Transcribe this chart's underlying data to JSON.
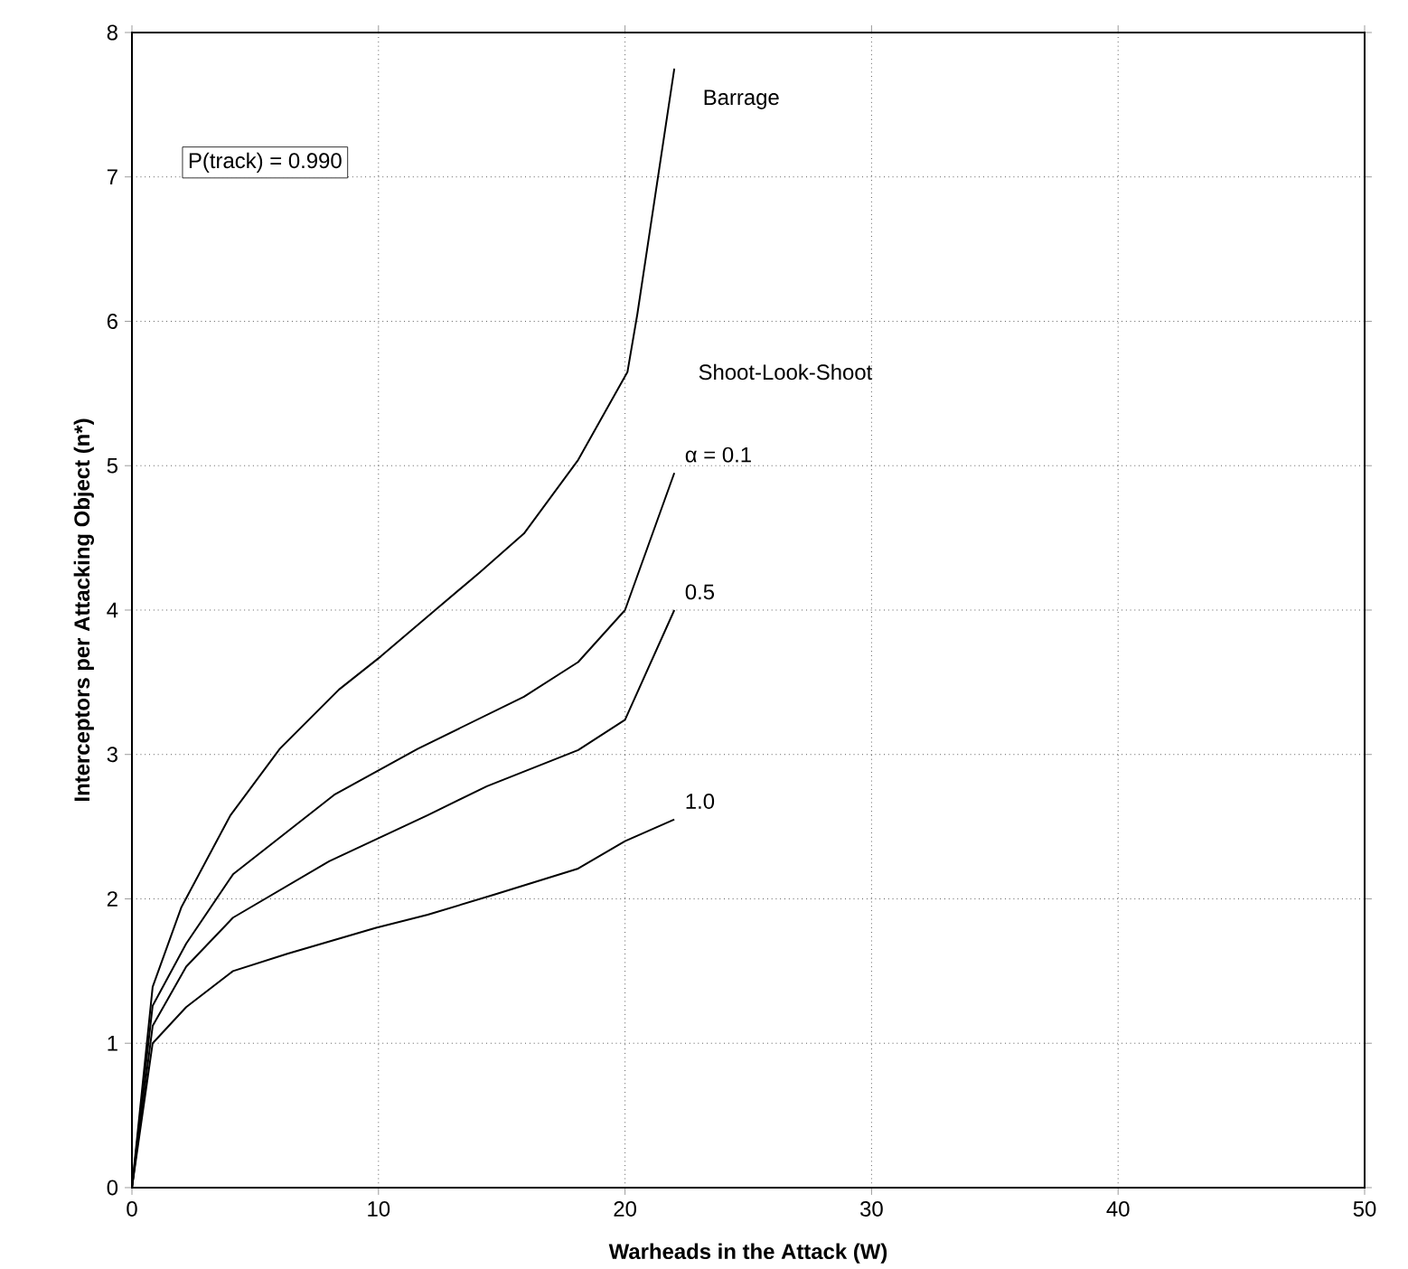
{
  "chart_data": {
    "type": "line",
    "xlabel": "Warheads in the Attack (W)",
    "ylabel": "Interceptors per Attacking Object (n*)",
    "xlim": [
      0,
      50
    ],
    "ylim": [
      0,
      8
    ],
    "xticks": [
      0,
      10,
      20,
      30,
      40,
      50
    ],
    "yticks": [
      0,
      1,
      2,
      3,
      4,
      5,
      6,
      7,
      8
    ],
    "grid": true,
    "legend": false,
    "marker": "none",
    "line_style": "solid",
    "annotations": [
      "P(track) = 0.990",
      "Shoot-Look-Shoot"
    ],
    "series": [
      {
        "name": "Barrage",
        "color": "#000000",
        "x": [
          0,
          0.84,
          2.0,
          4.0,
          6.0,
          8.4,
          10.1,
          12.3,
          14.1,
          15.9,
          18.1,
          20.1,
          20.5,
          22
        ],
        "values": [
          0,
          1.39,
          1.94,
          2.58,
          3.04,
          3.45,
          3.68,
          4.0,
          4.26,
          4.53,
          5.04,
          5.65,
          6.05,
          7.75
        ]
      },
      {
        "name": "α = 0.1",
        "color": "#000000",
        "x": [
          0,
          0.84,
          2.2,
          4.1,
          8.2,
          11.6,
          15.9,
          18.1,
          20,
          22
        ],
        "values": [
          0,
          1.26,
          1.69,
          2.17,
          2.72,
          3.04,
          3.4,
          3.64,
          4.0,
          4.95
        ]
      },
      {
        "name": "0.5",
        "color": "#000000",
        "x": [
          0,
          0.84,
          2.2,
          4.1,
          8,
          12,
          14.4,
          18.1,
          20,
          22
        ],
        "values": [
          0,
          1.12,
          1.53,
          1.87,
          2.26,
          2.58,
          2.78,
          3.03,
          3.24,
          4.0
        ]
      },
      {
        "name": "1.0",
        "color": "#000000",
        "x": [
          0,
          0.84,
          2.2,
          4.1,
          6.3,
          9.9,
          12,
          14.7,
          18.1,
          20,
          22
        ],
        "values": [
          0,
          1.0,
          1.25,
          1.5,
          1.62,
          1.8,
          1.89,
          2.03,
          2.21,
          2.4,
          2.55
        ]
      }
    ]
  }
}
